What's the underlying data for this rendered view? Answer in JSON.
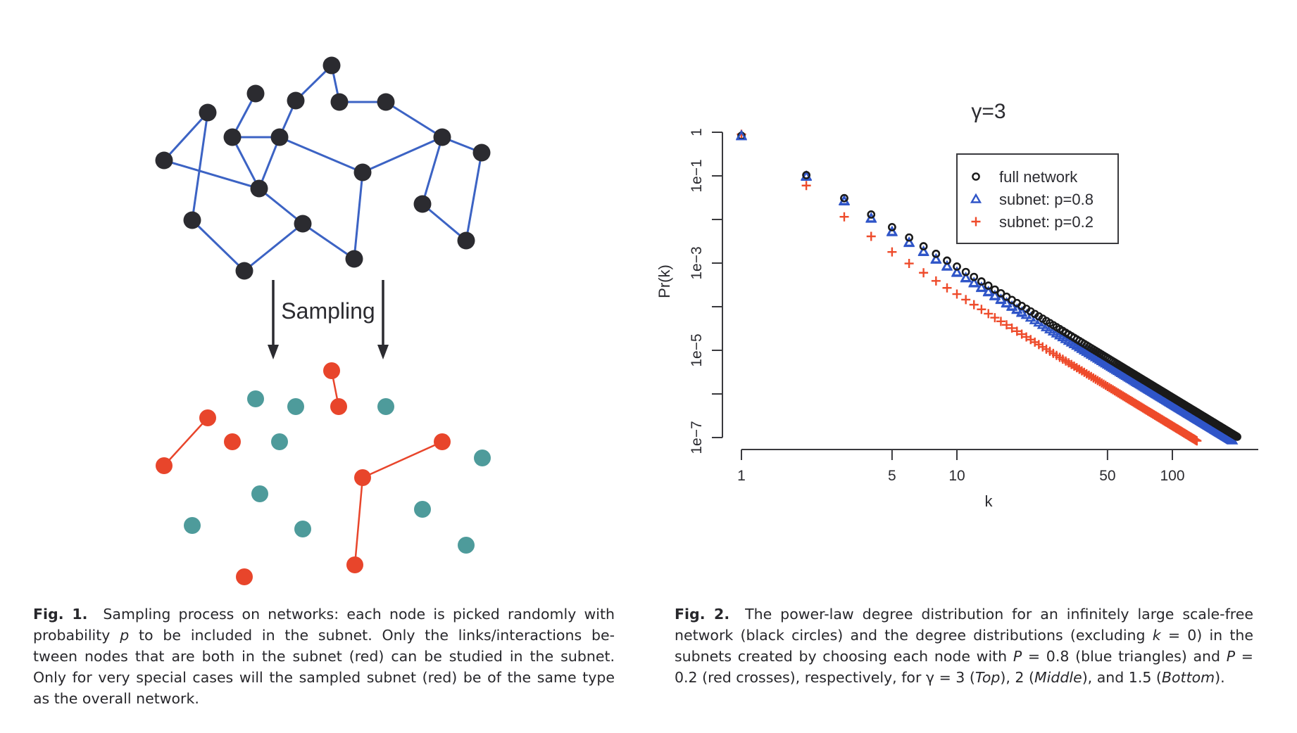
{
  "figure1": {
    "arrow_label": "Sampling",
    "colors": {
      "node": "#2b2b30",
      "edge": "#3c63c4",
      "subnet_node": "#e8452b",
      "subnet_edge": "#e8452b",
      "excluded_node": "#4e9b9b",
      "arrow": "#2b2b30"
    },
    "caption": {
      "label": "Fig. 1.",
      "lines": [
        [
          "Sampling process on networks: each node is picked randomly with"
        ],
        [
          "probability ",
          {
            "i": "p"
          },
          " to be included in the subnet. Only the links/interactions be-"
        ],
        [
          "tween nodes that are both in the subnet (red) can be studied in the subnet."
        ],
        [
          "Only for very special cases will the sampled subnet (red) be of the same type"
        ],
        [
          "as the overall network."
        ]
      ]
    }
  },
  "figure2": {
    "caption": {
      "label": "Fig. 2.",
      "lines": [
        [
          "The power-law degree distribution for an infinitely large scale-free"
        ],
        [
          "network (black circles) and the degree distributions (excluding ",
          {
            "i": "k"
          },
          " = 0) in the"
        ],
        [
          "subnets created by choosing each node with ",
          {
            "i": "P"
          },
          " = 0.8 (blue triangles) and ",
          {
            "i": "P"
          },
          " ="
        ],
        [
          "0.2 (red crosses), respectively, for γ = 3 (",
          {
            "i": "Top"
          },
          "), 2 (",
          {
            "i": "Middle"
          },
          "), and 1.5 (",
          {
            "i": "Bottom"
          },
          ")."
        ]
      ]
    }
  },
  "chart_data": {
    "type": "scatter",
    "title": "γ=3",
    "xlabel": "k",
    "ylabel": "Pr(k)",
    "xscale": "log",
    "yscale": "log",
    "xlim": [
      1,
      250
    ],
    "ylim": [
      1e-07,
      1
    ],
    "x_ticks": [
      1,
      5,
      10,
      50,
      100
    ],
    "x_tick_labels": [
      "1",
      "5",
      "10",
      "50",
      "100"
    ],
    "y_ticks": [
      1,
      0.1,
      0.01,
      0.001,
      0.0001,
      1e-05,
      1e-06,
      1e-07
    ],
    "y_tick_labels": [
      "1",
      "1e−1",
      "",
      "1e−3",
      "",
      "1e−5",
      "",
      "1e−7"
    ],
    "grid": false,
    "legend_position": "top-right",
    "series": [
      {
        "name": "full network",
        "marker": "circle",
        "color": "#1a1a1a",
        "k": [
          1,
          2,
          3,
          4,
          5,
          6,
          7,
          8,
          9,
          10,
          15,
          20,
          30,
          50,
          100,
          150,
          200
        ],
        "pr": [
          0.832,
          0.104,
          0.0308,
          0.013,
          0.00666,
          0.00385,
          0.00243,
          0.00163,
          0.00114,
          0.000832,
          0.000247,
          0.000104,
          3.08e-05,
          6.66e-06,
          8.32e-07,
          2.47e-07,
          1.04e-07
        ]
      },
      {
        "name": "subnet: p=0.8",
        "marker": "triangle",
        "color": "#2f55c8",
        "k": [
          1,
          2,
          3,
          4,
          5,
          6,
          7,
          8,
          9,
          10,
          15,
          20,
          30,
          50,
          100,
          150,
          190
        ],
        "pr": [
          0.84,
          0.099,
          0.027,
          0.0108,
          0.0053,
          0.003,
          0.00186,
          0.00124,
          0.00086,
          0.00062,
          0.00018,
          7.5e-05,
          2.2e-05,
          4.7e-06,
          5.9e-07,
          1.75e-07,
          8.6e-08
        ]
      },
      {
        "name": "subnet: p=0.2",
        "marker": "cross",
        "color": "#ee4b2b",
        "k": [
          1,
          2,
          3,
          4,
          5,
          6,
          7,
          8,
          9,
          10,
          15,
          20,
          30,
          50,
          100,
          130
        ],
        "pr": [
          0.9,
          0.06,
          0.0115,
          0.0041,
          0.0018,
          0.00098,
          0.0006,
          0.00039,
          0.00027,
          0.000195,
          5.6e-05,
          2.35e-05,
          6.9e-06,
          1.48e-06,
          1.85e-07,
          8.4e-08
        ]
      }
    ]
  }
}
